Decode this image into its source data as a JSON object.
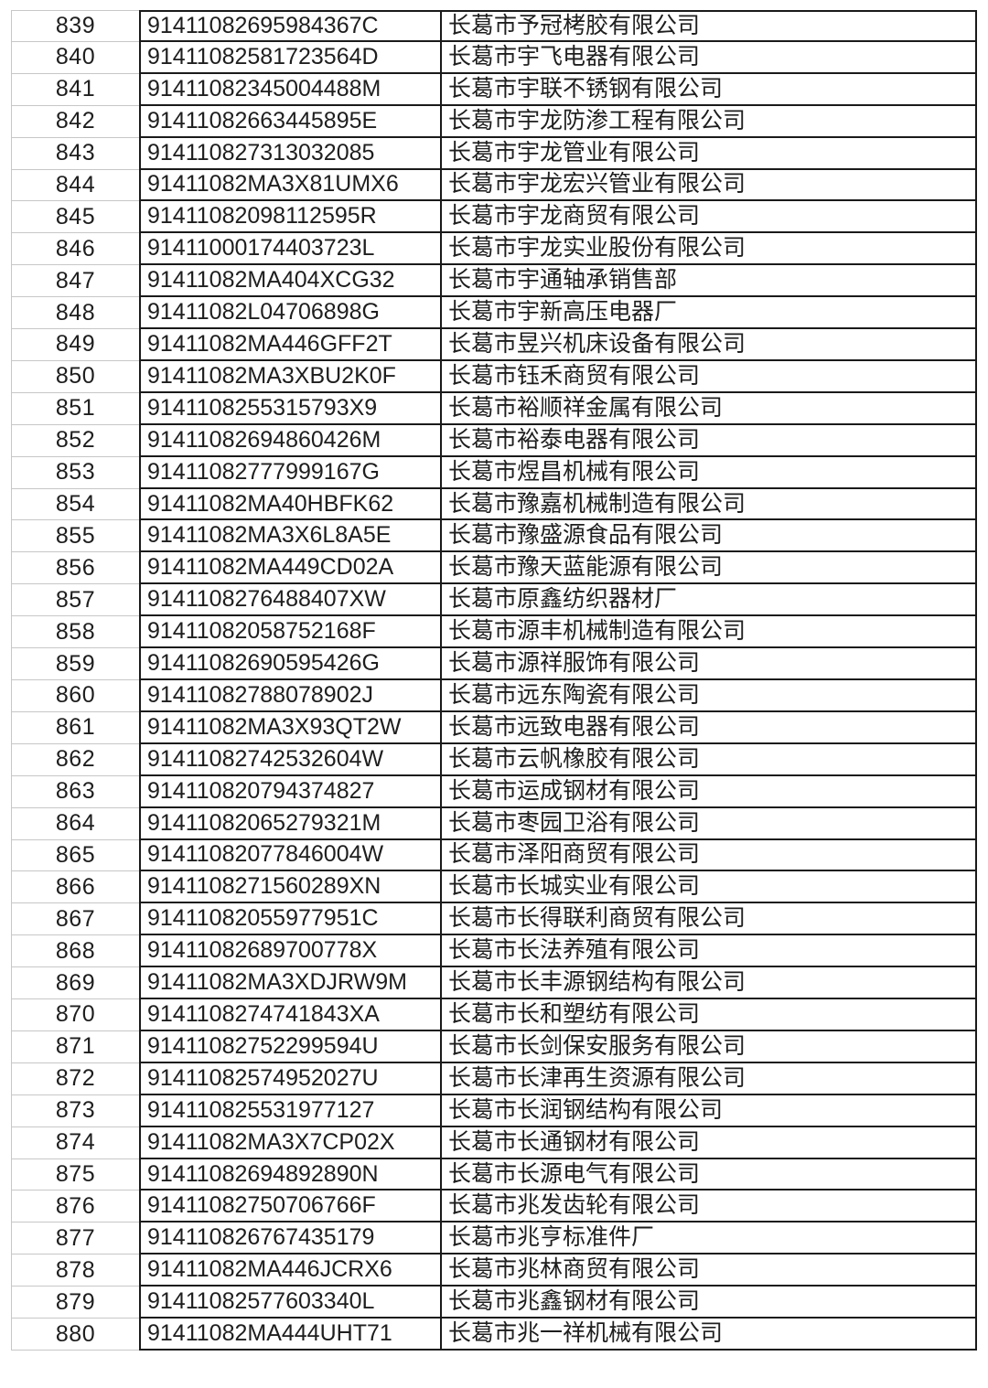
{
  "colors": {
    "background": "#ffffff",
    "text": "#1e1e1e",
    "cell_border_dark": "#1a1a1a",
    "gridline_light": "#c7c7c7"
  },
  "table": {
    "columns": [
      "row_number",
      "credit_code",
      "company_name"
    ],
    "rows": [
      [
        "839",
        "91411082695984367C",
        "长葛市予冠栲胶有限公司"
      ],
      [
        "840",
        "91411082581723564D",
        "长葛市宇飞电器有限公司"
      ],
      [
        "841",
        "91411082345004488M",
        "长葛市宇联不锈钢有限公司"
      ],
      [
        "842",
        "91411082663445895E",
        "长葛市宇龙防渗工程有限公司"
      ],
      [
        "843",
        "914110827313032085",
        "长葛市宇龙管业有限公司"
      ],
      [
        "844",
        "91411082MA3X81UMX6",
        "长葛市宇龙宏兴管业有限公司"
      ],
      [
        "845",
        "91411082098112595R",
        "长葛市宇龙商贸有限公司"
      ],
      [
        "846",
        "91411000174403723L",
        "长葛市宇龙实业股份有限公司"
      ],
      [
        "847",
        "91411082MA404XCG32",
        "长葛市宇通轴承销售部"
      ],
      [
        "848",
        "91411082L04706898G",
        "长葛市宇新高压电器厂"
      ],
      [
        "849",
        "91411082MA446GFF2T",
        "长葛市昱兴机床设备有限公司"
      ],
      [
        "850",
        "91411082MA3XBU2K0F",
        "长葛市钰禾商贸有限公司"
      ],
      [
        "851",
        "9141108255315793X9",
        "长葛市裕顺祥金属有限公司"
      ],
      [
        "852",
        "91411082694860426M",
        "长葛市裕泰电器有限公司"
      ],
      [
        "853",
        "91411082777999167G",
        "长葛市煜昌机械有限公司"
      ],
      [
        "854",
        "91411082MA40HBFK62",
        "长葛市豫嘉机械制造有限公司"
      ],
      [
        "855",
        "91411082MA3X6L8A5E",
        "长葛市豫盛源食品有限公司"
      ],
      [
        "856",
        "91411082MA449CD02A",
        "长葛市豫天蓝能源有限公司"
      ],
      [
        "857",
        "9141108276488407XW",
        "长葛市原鑫纺织器材厂"
      ],
      [
        "858",
        "91411082058752168F",
        "长葛市源丰机械制造有限公司"
      ],
      [
        "859",
        "91411082690595426G",
        "长葛市源祥服饰有限公司"
      ],
      [
        "860",
        "91411082788078902J",
        "长葛市远东陶瓷有限公司"
      ],
      [
        "861",
        "91411082MA3X93QT2W",
        "长葛市远致电器有限公司"
      ],
      [
        "862",
        "91411082742532604W",
        "长葛市云帆橡胶有限公司"
      ],
      [
        "863",
        "914110820794374827",
        "长葛市运成钢材有限公司"
      ],
      [
        "864",
        "91411082065279321M",
        "长葛市枣园卫浴有限公司"
      ],
      [
        "865",
        "91411082077846004W",
        "长葛市泽阳商贸有限公司"
      ],
      [
        "866",
        "9141108271560289XN",
        "长葛市长城实业有限公司"
      ],
      [
        "867",
        "91411082055977951C",
        "长葛市长得联利商贸有限公司"
      ],
      [
        "868",
        "91411082689700778X",
        "长葛市长法养殖有限公司"
      ],
      [
        "869",
        "91411082MA3XDJRW9M",
        "长葛市长丰源钢结构有限公司"
      ],
      [
        "870",
        "9141108274741843XA",
        "长葛市长和塑纺有限公司"
      ],
      [
        "871",
        "91411082752299594U",
        "长葛市长剑保安服务有限公司"
      ],
      [
        "872",
        "91411082574952027U",
        "长葛市长津再生资源有限公司"
      ],
      [
        "873",
        "914110825531977127",
        "长葛市长润钢结构有限公司"
      ],
      [
        "874",
        "91411082MA3X7CP02X",
        "长葛市长通钢材有限公司"
      ],
      [
        "875",
        "91411082694892890N",
        "长葛市长源电气有限公司"
      ],
      [
        "876",
        "91411082750706766F",
        "长葛市兆发齿轮有限公司"
      ],
      [
        "877",
        "914110826767435179",
        "长葛市兆亨标准件厂"
      ],
      [
        "878",
        "91411082MA446JCRX6",
        "长葛市兆林商贸有限公司"
      ],
      [
        "879",
        "91411082577603340L",
        "长葛市兆鑫钢材有限公司"
      ],
      [
        "880",
        "91411082MA444UHT71",
        "长葛市兆一祥机械有限公司"
      ]
    ]
  }
}
